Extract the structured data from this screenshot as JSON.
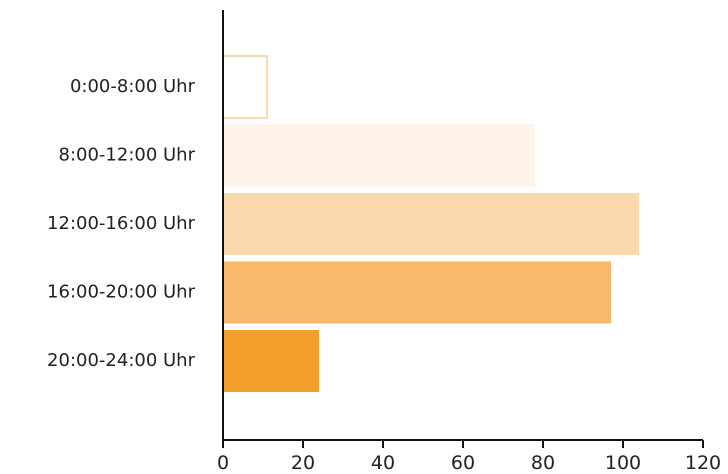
{
  "chart_data": {
    "type": "bar",
    "orientation": "horizontal",
    "categories": [
      "0:00-8:00 Uhr",
      "8:00-12:00 Uhr",
      "12:00-16:00 Uhr",
      "16:00-20:00 Uhr",
      "20:00-24:00 Uhr"
    ],
    "values": [
      11,
      78,
      104,
      97,
      24
    ],
    "bar_colors": [
      "#ffffff",
      "#fef3e8",
      "#fbd9ad",
      "#f8b96c",
      "#f29e2d"
    ],
    "bar_outline_first": "#fbd9ad",
    "xlim": [
      0,
      120
    ],
    "xticks": [
      "0",
      "20",
      "40",
      "60",
      "80",
      "100",
      "120"
    ],
    "grid": false,
    "legend": "none"
  }
}
